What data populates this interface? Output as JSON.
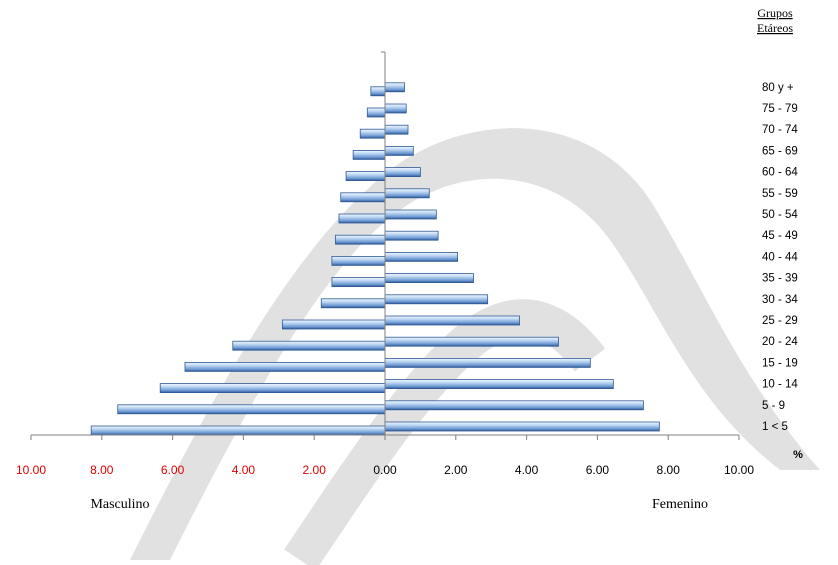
{
  "chart_data": {
    "type": "bar",
    "orientation": "horizontal",
    "layout": "population-pyramid",
    "legend_title": "Grupos Etáreos",
    "categories": [
      "1 < 5",
      "5 - 9",
      "10 - 14",
      "15 - 19",
      "20 - 24",
      "25 - 29",
      "30 - 34",
      "35 - 39",
      "40 - 44",
      "45 - 49",
      "50 - 54",
      "55 - 59",
      "60 - 64",
      "65 - 69",
      "70 - 74",
      "75 - 79",
      "80 y +"
    ],
    "series": [
      {
        "name": "Masculino",
        "values": [
          8.3,
          7.55,
          6.35,
          5.65,
          4.3,
          2.9,
          1.8,
          1.5,
          1.5,
          1.4,
          1.3,
          1.25,
          1.1,
          0.9,
          0.7,
          0.5,
          0.4
        ]
      },
      {
        "name": "Femenino",
        "values": [
          7.75,
          7.3,
          6.45,
          5.8,
          4.9,
          3.8,
          2.9,
          2.5,
          2.05,
          1.5,
          1.45,
          1.25,
          1.0,
          0.8,
          0.65,
          0.6,
          0.55
        ]
      }
    ],
    "x_unit": "%",
    "x_ticks_left": [
      "10.00",
      "8.00",
      "6.00",
      "4.00",
      "2.00"
    ],
    "x_ticks_right": [
      "0.00",
      "2.00",
      "4.00",
      "6.00",
      "8.00",
      "10.00"
    ],
    "xlim": [
      -10,
      10
    ],
    "grid": false
  },
  "colors": {
    "bar_light": "#cfe2f7",
    "bar_dark": "#3f6aa8",
    "tick_left": "#e00000",
    "tick_right": "#000000",
    "watermark": "#d9d9d9"
  }
}
